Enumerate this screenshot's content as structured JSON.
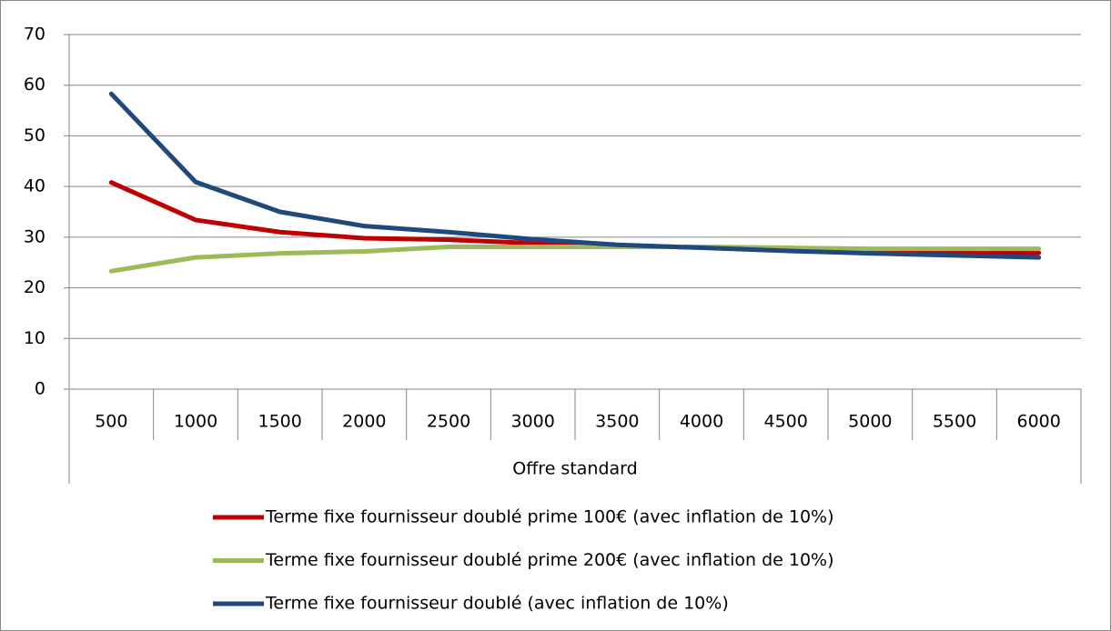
{
  "chart_data": {
    "type": "line",
    "categories": [
      500,
      1000,
      1500,
      2000,
      2500,
      3000,
      3500,
      4000,
      4500,
      5000,
      5500,
      6000
    ],
    "x_group_label": "Offre standard",
    "series": [
      {
        "name": "Terme fixe fournisseur doublé prime 100€ (avec inflation de 10%)",
        "color": "#c00000",
        "values": [
          40.8,
          33.4,
          31,
          29.8,
          29.5,
          28.8,
          28.3,
          28,
          27.6,
          27.2,
          27,
          26.9
        ]
      },
      {
        "name": "Terme fixe fournisseur doublé prime 200€ (avec inflation de 10%)",
        "color": "#9bbb59",
        "values": [
          23.3,
          26,
          26.8,
          27.2,
          28.1,
          28.1,
          28.1,
          28.1,
          27.9,
          27.7,
          27.7,
          27.7
        ]
      },
      {
        "name": "Terme fixe fournisseur doublé (avec inflation de 10%)",
        "color": "#1f497d",
        "values": [
          58.3,
          40.9,
          35,
          32.2,
          31,
          29.6,
          28.5,
          27.9,
          27.3,
          26.8,
          26.4,
          26
        ]
      }
    ],
    "ylim": [
      0,
      70
    ],
    "yticks": [
      0,
      10,
      20,
      30,
      40,
      50,
      60,
      70
    ],
    "grid": true,
    "legend": "bottom"
  }
}
